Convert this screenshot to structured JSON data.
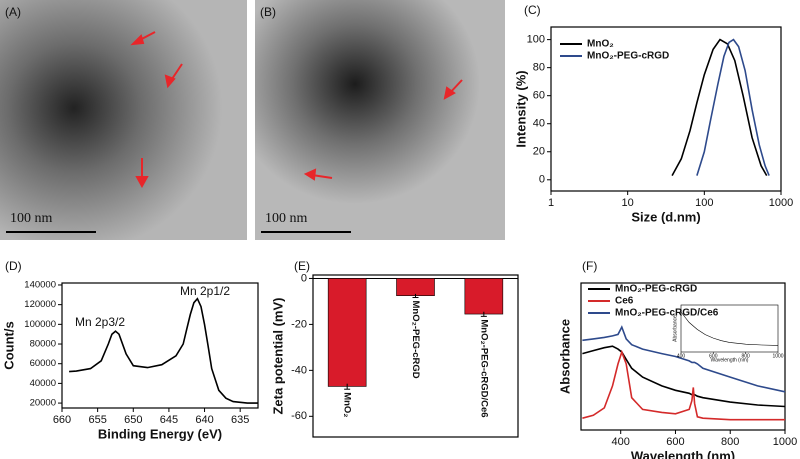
{
  "images": [
    {
      "label": "(A)",
      "scale_bar": "100 nm"
    },
    {
      "label": "(B)",
      "scale_bar": "100 nm"
    }
  ],
  "chart_data": [
    {
      "type": "line",
      "panel_label": "(C)",
      "x_label": "Size (d.nm)",
      "y_label": "Intensity (%)",
      "log_x": true,
      "xlim": [
        1,
        1000
      ],
      "xticks": [
        1,
        10,
        100,
        1000
      ],
      "ylim": [
        -8,
        109
      ],
      "yticks": [
        0,
        20,
        40,
        60,
        80,
        100
      ],
      "legend": "upper left",
      "series": [
        {
          "name": "MnO₂",
          "color": "#000000",
          "x": [
            38,
            50,
            65,
            80,
            100,
            130,
            160,
            200,
            250,
            320,
            420,
            550,
            650
          ],
          "values": [
            3,
            15,
            35,
            55,
            75,
            93,
            100,
            97,
            85,
            60,
            30,
            10,
            3
          ]
        },
        {
          "name": "MnO₂-PEG-cRGD",
          "color": "#2e4a8c",
          "x": [
            80,
            100,
            120,
            150,
            180,
            210,
            240,
            280,
            340,
            420,
            520,
            620,
            700
          ],
          "values": [
            3,
            20,
            42,
            68,
            88,
            98,
            100,
            95,
            78,
            50,
            25,
            10,
            3
          ]
        }
      ]
    },
    {
      "type": "line",
      "panel_label": "(D)",
      "x_label": "Binding Energy (eV)",
      "y_label": "Count/s",
      "xlim": [
        660,
        632.5
      ],
      "xticks": [
        660,
        655,
        650,
        645,
        640,
        635
      ],
      "ylim": [
        15000,
        142000
      ],
      "yticks": [
        20000,
        40000,
        60000,
        80000,
        100000,
        120000,
        140000
      ],
      "annotations": [
        "Mn 2p3/2",
        "Mn 2p1/2"
      ],
      "series": [
        {
          "color": "#000000",
          "x": [
            659,
            658,
            656,
            654.5,
            653.5,
            653,
            652.5,
            652,
            651,
            650,
            648,
            646,
            644,
            643,
            642.5,
            642,
            641.5,
            641,
            640.5,
            640,
            639.5,
            639,
            638,
            637,
            636,
            634,
            632.5
          ],
          "values": [
            52000,
            52500,
            55000,
            63000,
            80000,
            90000,
            93000,
            90000,
            70000,
            58000,
            56000,
            59000,
            68000,
            80000,
            95000,
            110000,
            122000,
            126000,
            118000,
            100000,
            78000,
            55000,
            33000,
            25000,
            21500,
            20000,
            20000
          ]
        }
      ]
    },
    {
      "type": "bar",
      "panel_label": "(E)",
      "y_label": "Zeta potential (mV)",
      "color": "#d81b2a",
      "categories": [
        "MnO₂",
        "MnO₂-PEG-cRGD",
        "MnO₂-PEG-cRGD/Ce6"
      ],
      "values": [
        -47,
        -7.5,
        -15.5
      ],
      "errors": [
        1.2,
        0.8,
        1
      ],
      "ylim": [
        -69,
        1.5
      ],
      "yticks": [
        0,
        -20,
        -40,
        -60
      ]
    },
    {
      "type": "line",
      "panel_label": "(F)",
      "x_label": "Wavelength (nm)",
      "y_label": "Absorbance",
      "xlim": [
        255,
        1000
      ],
      "xticks": [
        400,
        600,
        800,
        1000
      ],
      "ylim": [
        0,
        1
      ],
      "legend": "upper left",
      "series": [
        {
          "name": "MnO₂-PEG-cRGD",
          "color": "#000000",
          "x": [
            260,
            300,
            340,
            370,
            390,
            404,
            420,
            440,
            480,
            550,
            600,
            650,
            660,
            665,
            670,
            680,
            700,
            800,
            900,
            1000
          ],
          "values": [
            0.52,
            0.54,
            0.56,
            0.57,
            0.55,
            0.53,
            0.48,
            0.42,
            0.36,
            0.3,
            0.27,
            0.25,
            0.24,
            0.24,
            0.24,
            0.23,
            0.22,
            0.19,
            0.17,
            0.16
          ]
        },
        {
          "name": "Ce6",
          "color": "#d42a2a",
          "x": [
            260,
            300,
            340,
            370,
            390,
            404,
            420,
            440,
            480,
            550,
            600,
            650,
            660,
            665,
            670,
            680,
            700,
            800,
            900,
            1000
          ],
          "values": [
            0.08,
            0.1,
            0.15,
            0.3,
            0.45,
            0.53,
            0.45,
            0.22,
            0.14,
            0.12,
            0.11,
            0.14,
            0.2,
            0.29,
            0.18,
            0.09,
            0.08,
            0.07,
            0.07,
            0.07
          ]
        },
        {
          "name": "MnO₂-PEG-cRGD/Ce6",
          "color": "#2e4a8c",
          "x": [
            260,
            300,
            340,
            370,
            390,
            404,
            420,
            440,
            480,
            550,
            600,
            650,
            660,
            665,
            670,
            680,
            700,
            800,
            900,
            1000
          ],
          "values": [
            0.61,
            0.62,
            0.63,
            0.64,
            0.65,
            0.7,
            0.62,
            0.58,
            0.55,
            0.52,
            0.5,
            0.47,
            0.46,
            0.46,
            0.46,
            0.45,
            0.42,
            0.36,
            0.3,
            0.26
          ]
        }
      ]
    },
    {
      "type": "line",
      "x_label": "Wavelength (nm)",
      "y_label": "Absorbance",
      "xlim": [
        400,
        1000
      ],
      "xticks": [
        400,
        600,
        800,
        1000
      ],
      "ylim": [
        0.5,
        3.2
      ],
      "series": [
        {
          "color": "#000000",
          "x": [
            400,
            450,
            500,
            550,
            600,
            650,
            700,
            800,
            900,
            1000
          ],
          "values": [
            2.8,
            2.2,
            1.8,
            1.5,
            1.3,
            1.15,
            1.05,
            0.95,
            0.9,
            0.88
          ]
        }
      ]
    }
  ]
}
